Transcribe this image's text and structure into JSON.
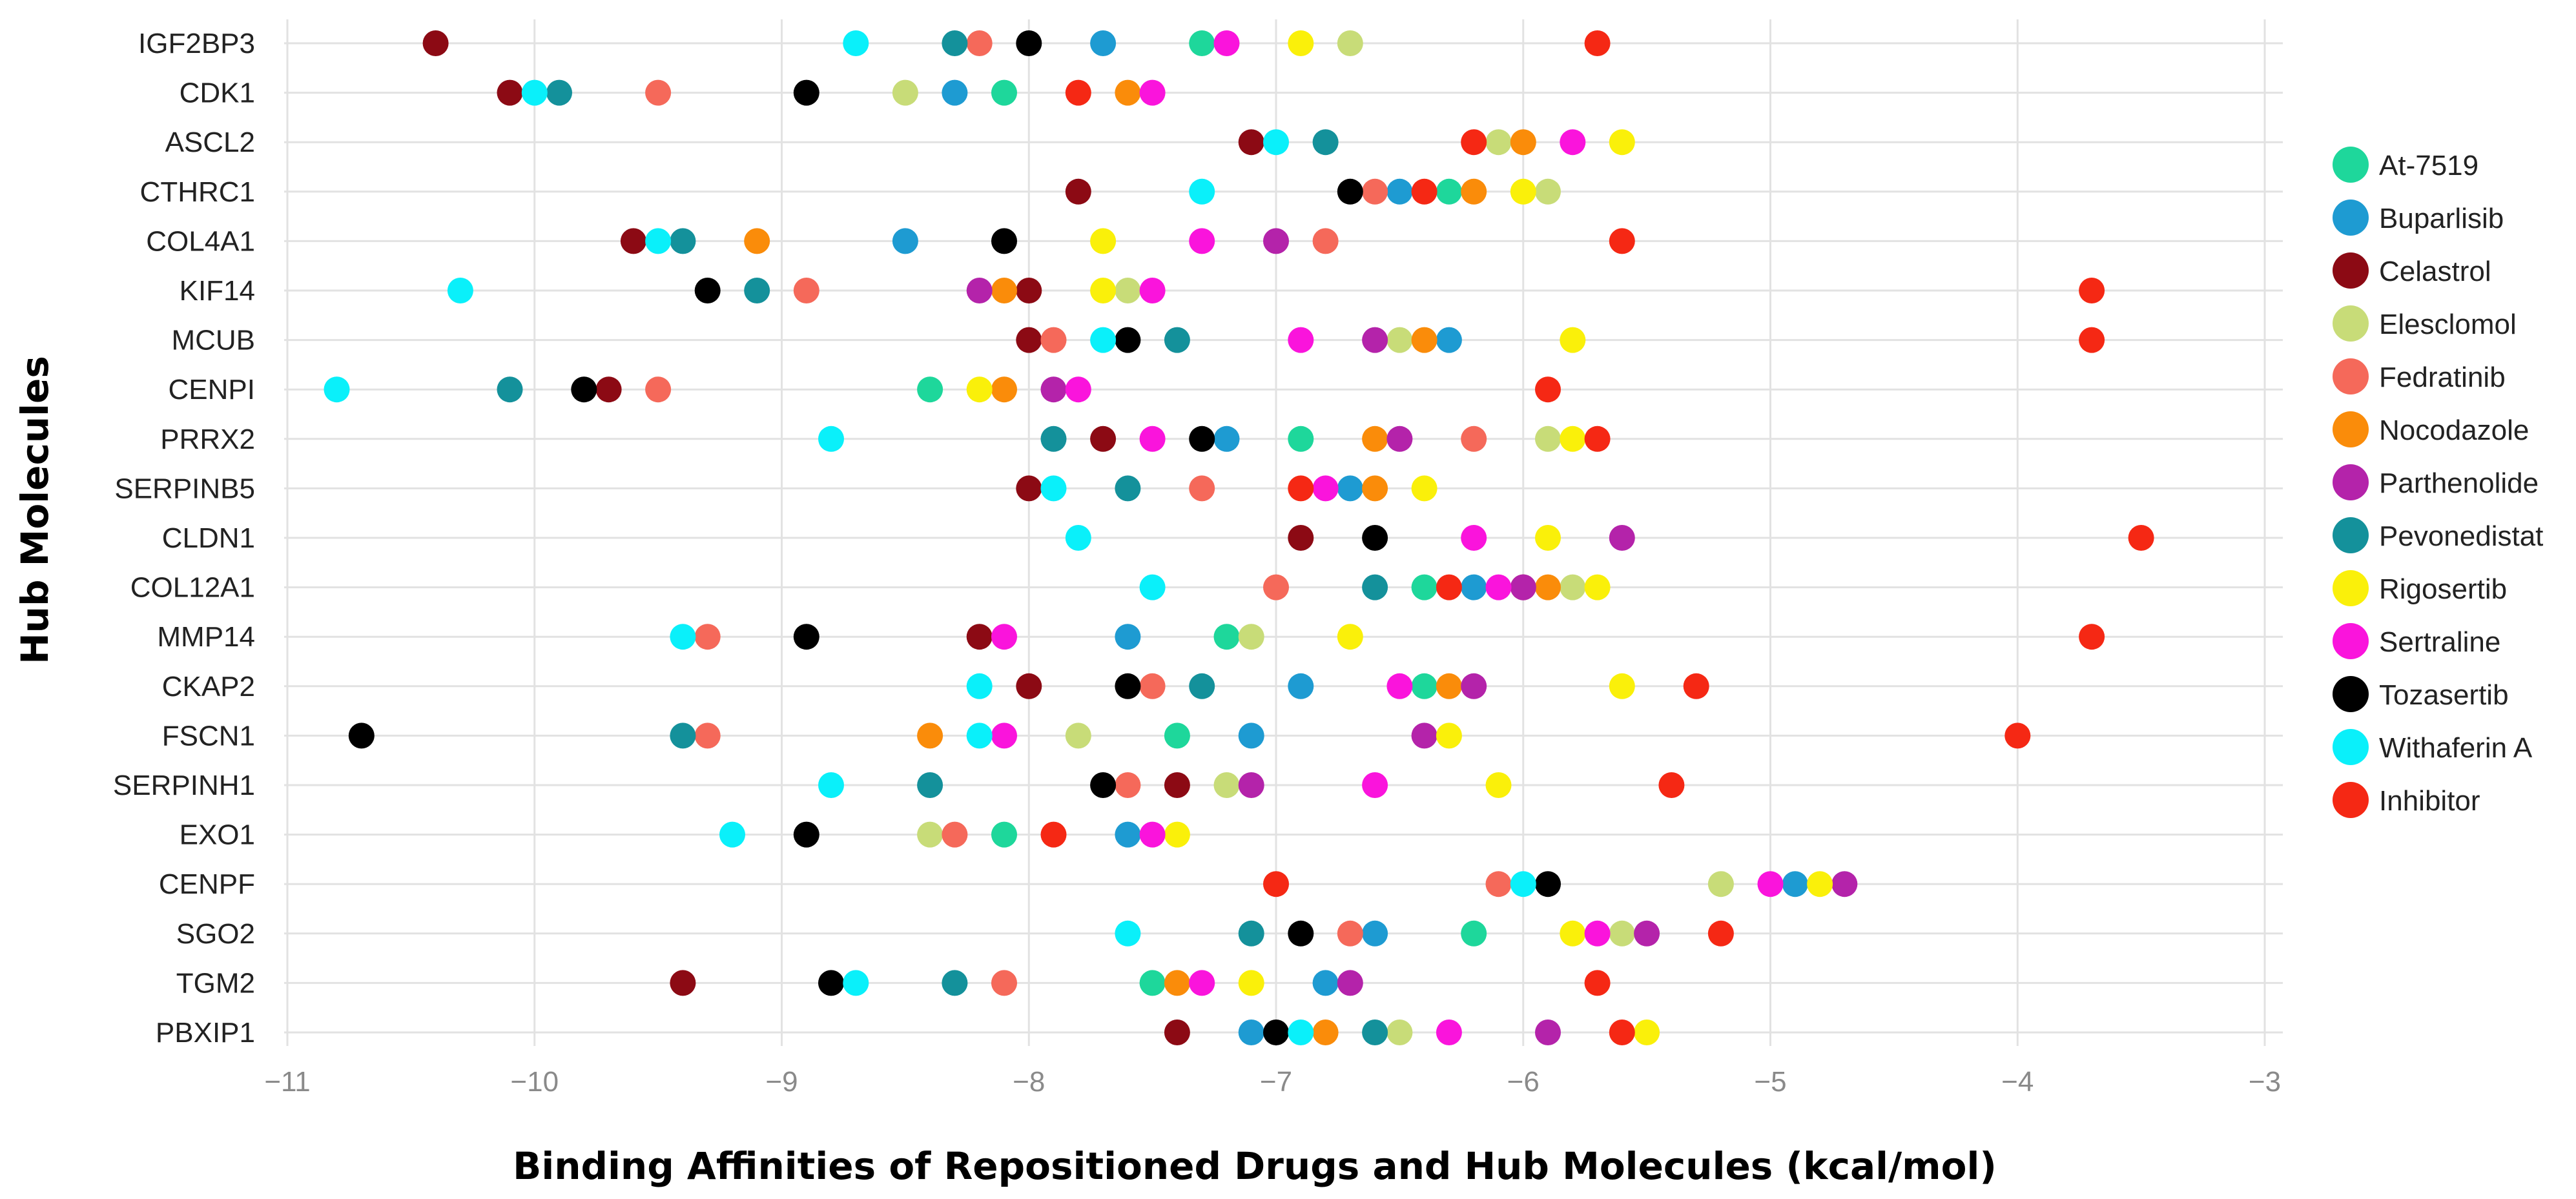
{
  "chart_data": {
    "type": "scatter",
    "xlabel": "Binding Affinities of Repositioned Drugs and Hub Molecules (kcal/mol)",
    "ylabel": "Hub Molecules",
    "xlim": [
      -11,
      -3
    ],
    "xticks": [
      -11,
      -10,
      -9,
      -8,
      -7,
      -6,
      -5,
      -4,
      -3
    ],
    "xtick_labels": [
      "−11",
      "−10",
      "−9",
      "−8",
      "−7",
      "−6",
      "−5",
      "−4",
      "−3"
    ],
    "grid": true,
    "legend_position": "right",
    "categories": [
      "IGF2BP3",
      "CDK1",
      "ASCL2",
      "CTHRC1",
      "COL4A1",
      "KIF14",
      "MCUB",
      "CENPI",
      "PRRX2",
      "SERPINB5",
      "CLDN1",
      "COL12A1",
      "MMP14",
      "CKAP2",
      "FSCN1",
      "SERPINH1",
      "EXO1",
      "CENPF",
      "SGO2",
      "TGM2",
      "PBXIP1"
    ],
    "series": [
      {
        "name": "At-7519",
        "color": "#1ed79b",
        "values": [
          -7.3,
          -8.1,
          null,
          -6.3,
          null,
          null,
          null,
          -8.4,
          -6.9,
          null,
          null,
          -6.4,
          -7.2,
          -6.4,
          -7.4,
          null,
          -8.1,
          null,
          -6.2,
          -7.5,
          null
        ]
      },
      {
        "name": "Buparlisib",
        "color": "#1e9bd2",
        "values": [
          -7.7,
          -8.3,
          null,
          -6.5,
          -8.5,
          null,
          -6.3,
          null,
          -7.2,
          -6.7,
          null,
          -6.2,
          -7.6,
          -6.9,
          -7.1,
          null,
          -7.6,
          -4.9,
          -6.6,
          -6.8,
          -7.1
        ]
      },
      {
        "name": "Celastrol",
        "color": "#8c0a14",
        "values": [
          -10.4,
          -10.1,
          -7.1,
          -7.8,
          -9.6,
          -8.0,
          -8.0,
          -9.7,
          -7.7,
          -8.0,
          -6.9,
          -6.0,
          -8.2,
          -8.0,
          null,
          -7.4,
          null,
          null,
          null,
          -9.4,
          -7.4
        ]
      },
      {
        "name": "Elesclomol",
        "color": "#c8dc78",
        "values": [
          -6.7,
          -8.5,
          -6.1,
          -5.9,
          null,
          -7.6,
          -6.5,
          null,
          -5.9,
          null,
          null,
          -5.8,
          -7.1,
          null,
          -7.8,
          -7.2,
          -8.4,
          -5.2,
          -5.6,
          null,
          -6.5
        ]
      },
      {
        "name": "Fedratinib",
        "color": "#f5695a",
        "values": [
          -8.2,
          -9.5,
          null,
          -6.6,
          -6.8,
          -8.9,
          -7.9,
          -9.5,
          -6.2,
          -7.3,
          null,
          -7.0,
          -9.3,
          -7.5,
          -9.3,
          -7.6,
          -8.3,
          -6.1,
          -6.7,
          -8.1,
          null
        ]
      },
      {
        "name": "Nocodazole",
        "color": "#fa8c0a",
        "values": [
          null,
          -7.6,
          -6.0,
          -6.2,
          -9.1,
          -8.1,
          -6.4,
          -8.1,
          -6.6,
          -6.6,
          null,
          -5.9,
          null,
          -6.3,
          -8.4,
          null,
          null,
          null,
          null,
          -7.4,
          -6.8
        ]
      },
      {
        "name": "Parthenolide",
        "color": "#b423aa",
        "values": [
          null,
          null,
          null,
          null,
          -7.0,
          -8.2,
          -6.6,
          -7.9,
          -6.5,
          null,
          -5.6,
          -6.0,
          null,
          -6.2,
          -6.4,
          -7.1,
          null,
          -4.7,
          -5.5,
          -6.7,
          -5.9
        ]
      },
      {
        "name": "Pevonedistat",
        "color": "#14919b",
        "values": [
          -8.3,
          -9.9,
          -6.8,
          null,
          -9.4,
          -9.1,
          -7.4,
          -10.1,
          -7.9,
          -7.6,
          null,
          -6.6,
          null,
          -7.3,
          -9.4,
          -8.4,
          null,
          null,
          -7.1,
          -8.3,
          -6.6
        ]
      },
      {
        "name": "Rigosertib",
        "color": "#faf00a",
        "values": [
          -6.9,
          null,
          -5.6,
          -6.0,
          -7.7,
          -7.7,
          -5.8,
          -8.2,
          -5.8,
          -6.4,
          -5.9,
          -5.7,
          -6.7,
          -5.6,
          -6.3,
          -6.1,
          -7.4,
          -4.8,
          -5.8,
          -7.1,
          -5.5
        ]
      },
      {
        "name": "Sertraline",
        "color": "#fa14dc",
        "values": [
          -7.2,
          -7.5,
          -5.8,
          null,
          -7.3,
          -7.5,
          -6.9,
          -7.8,
          -7.5,
          -6.8,
          -6.2,
          -6.1,
          -8.1,
          -6.5,
          -8.1,
          -6.6,
          -7.5,
          -5.0,
          -5.7,
          -7.3,
          -6.3
        ]
      },
      {
        "name": "Tozasertib",
        "color": "#000000",
        "values": [
          -8.0,
          -8.9,
          null,
          -6.7,
          -8.1,
          -9.3,
          -7.6,
          -9.8,
          -7.3,
          null,
          -6.6,
          null,
          -8.9,
          -7.6,
          -10.7,
          -7.7,
          -8.9,
          -5.9,
          -6.9,
          -8.8,
          -7.0
        ]
      },
      {
        "name": "Withaferin A",
        "color": "#0af0fa",
        "values": [
          -8.7,
          -10.0,
          -7.0,
          -7.3,
          -9.5,
          -10.3,
          -7.7,
          -10.8,
          -8.8,
          -7.9,
          -7.8,
          -7.5,
          -9.4,
          -8.2,
          -8.2,
          -8.8,
          -9.2,
          -6.0,
          -7.6,
          -8.7,
          -6.9
        ]
      },
      {
        "name": "Inhibitor",
        "color": "#f52814",
        "values": [
          -5.7,
          -7.8,
          -6.2,
          -6.4,
          -5.6,
          -3.7,
          -3.7,
          -5.9,
          -5.7,
          -6.9,
          -3.5,
          -6.3,
          -3.7,
          -5.3,
          -4.0,
          -5.4,
          -7.9,
          -7.0,
          -5.2,
          -5.7,
          -5.6
        ]
      }
    ]
  }
}
